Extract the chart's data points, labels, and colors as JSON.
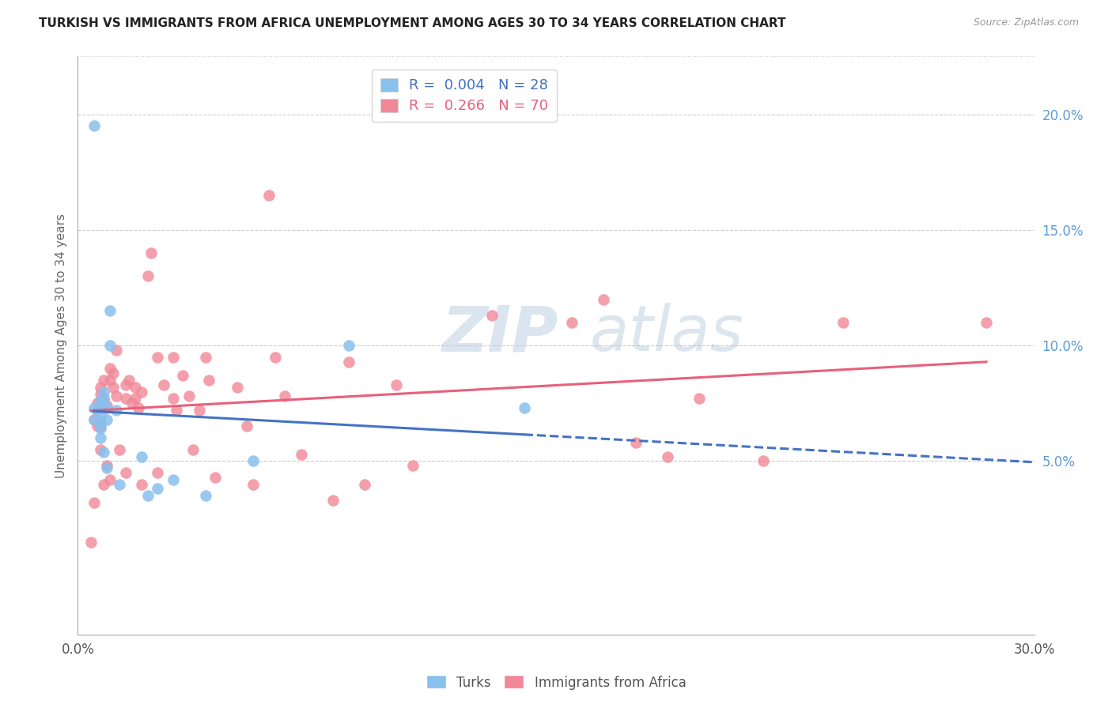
{
  "title": "TURKISH VS IMMIGRANTS FROM AFRICA UNEMPLOYMENT AMONG AGES 30 TO 34 YEARS CORRELATION CHART",
  "source": "Source: ZipAtlas.com",
  "ylabel": "Unemployment Among Ages 30 to 34 years",
  "xlim": [
    0.0,
    0.3
  ],
  "ylim": [
    -0.025,
    0.225
  ],
  "legend_turks_R": "0.004",
  "legend_turks_N": "28",
  "legend_africa_R": "0.266",
  "legend_africa_N": "70",
  "color_turks": "#88C0EE",
  "color_africa": "#F08898",
  "color_line_turks": "#4472C4",
  "color_line_africa": "#E8607A",
  "turks_x": [
    0.005,
    0.005,
    0.005,
    0.007,
    0.007,
    0.007,
    0.007,
    0.007,
    0.007,
    0.008,
    0.008,
    0.008,
    0.008,
    0.009,
    0.009,
    0.009,
    0.01,
    0.01,
    0.012,
    0.013,
    0.02,
    0.022,
    0.025,
    0.03,
    0.04,
    0.055,
    0.085,
    0.14
  ],
  "turks_y": [
    0.195,
    0.073,
    0.068,
    0.076,
    0.073,
    0.07,
    0.067,
    0.064,
    0.06,
    0.08,
    0.077,
    0.074,
    0.054,
    0.073,
    0.068,
    0.047,
    0.115,
    0.1,
    0.072,
    0.04,
    0.052,
    0.035,
    0.038,
    0.042,
    0.035,
    0.05,
    0.1,
    0.073
  ],
  "africa_x": [
    0.004,
    0.005,
    0.005,
    0.006,
    0.006,
    0.006,
    0.007,
    0.007,
    0.007,
    0.007,
    0.007,
    0.008,
    0.008,
    0.008,
    0.009,
    0.009,
    0.01,
    0.01,
    0.01,
    0.011,
    0.011,
    0.012,
    0.012,
    0.013,
    0.015,
    0.015,
    0.015,
    0.016,
    0.017,
    0.018,
    0.018,
    0.019,
    0.02,
    0.02,
    0.022,
    0.023,
    0.025,
    0.025,
    0.027,
    0.03,
    0.03,
    0.031,
    0.033,
    0.035,
    0.036,
    0.038,
    0.04,
    0.041,
    0.043,
    0.05,
    0.053,
    0.055,
    0.06,
    0.062,
    0.065,
    0.07,
    0.08,
    0.085,
    0.09,
    0.1,
    0.105,
    0.13,
    0.155,
    0.165,
    0.175,
    0.185,
    0.195,
    0.215,
    0.24,
    0.285
  ],
  "africa_y": [
    0.015,
    0.068,
    0.032,
    0.075,
    0.072,
    0.065,
    0.082,
    0.079,
    0.073,
    0.065,
    0.055,
    0.085,
    0.077,
    0.04,
    0.074,
    0.048,
    0.09,
    0.085,
    0.042,
    0.088,
    0.082,
    0.098,
    0.078,
    0.055,
    0.083,
    0.077,
    0.045,
    0.085,
    0.075,
    0.082,
    0.077,
    0.073,
    0.08,
    0.04,
    0.13,
    0.14,
    0.095,
    0.045,
    0.083,
    0.095,
    0.077,
    0.072,
    0.087,
    0.078,
    0.055,
    0.072,
    0.095,
    0.085,
    0.043,
    0.082,
    0.065,
    0.04,
    0.165,
    0.095,
    0.078,
    0.053,
    0.033,
    0.093,
    0.04,
    0.083,
    0.048,
    0.113,
    0.11,
    0.12,
    0.058,
    0.052,
    0.077,
    0.05,
    0.11,
    0.11
  ]
}
